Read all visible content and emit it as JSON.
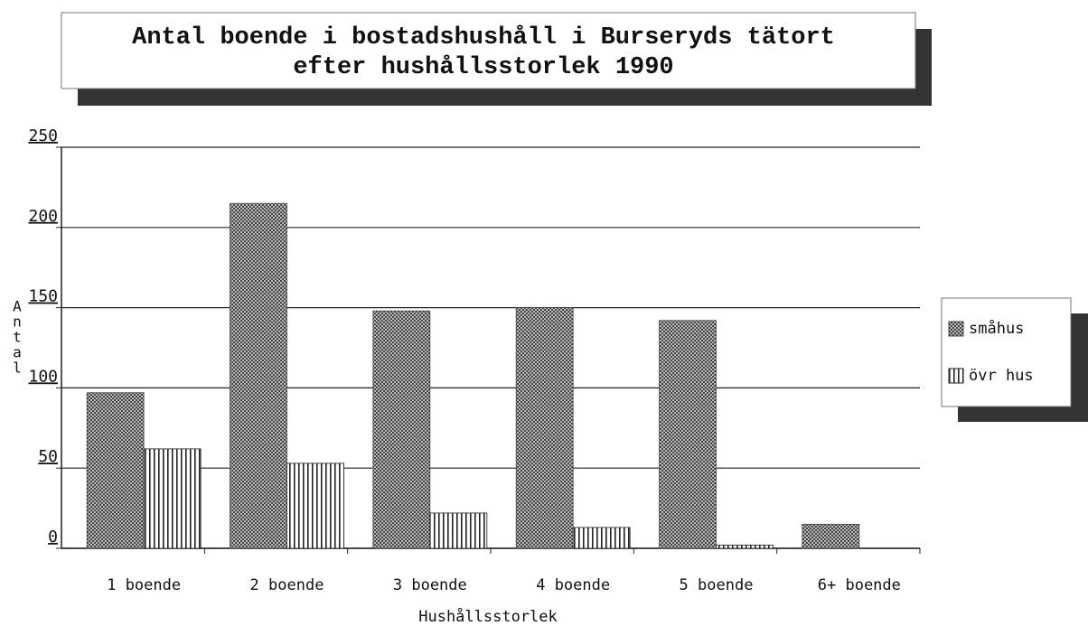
{
  "chart_data": {
    "type": "bar",
    "title": "Antal boende i bostadshushåll i Burseryds tätort",
    "subtitle": "efter hushållsstorlek 1990",
    "categories": [
      "1 boende",
      "2 boende",
      "3 boende",
      "4 boende",
      "5 boende",
      "6+ boende"
    ],
    "series": [
      {
        "name": "småhus",
        "color": "#444444",
        "values": [
          97,
          215,
          148,
          150,
          142,
          15
        ]
      },
      {
        "name": "övr hus",
        "color": "#222222",
        "values": [
          62,
          53,
          22,
          13,
          2,
          0
        ]
      }
    ],
    "ylim": [
      0,
      250
    ],
    "yticks": [
      0,
      50,
      100,
      150,
      200,
      250
    ],
    "grid": true,
    "xlabel": "Hushållsstorlek",
    "ylabel": "Antal",
    "legend": "right"
  }
}
